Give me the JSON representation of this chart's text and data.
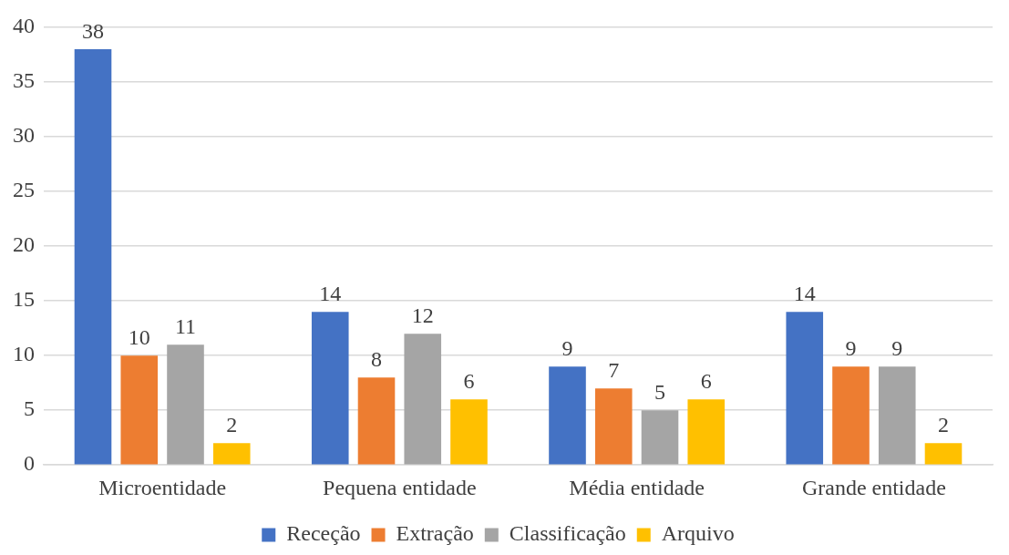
{
  "chart_data": {
    "type": "bar",
    "categories": [
      "Microentidade",
      "Pequena entidade",
      "Média entidade",
      "Grande entidade"
    ],
    "series": [
      {
        "name": "Receção",
        "color": "#4472c4",
        "values": [
          38,
          14,
          9,
          14
        ]
      },
      {
        "name": "Extração",
        "color": "#ed7d31",
        "values": [
          10,
          8,
          7,
          9
        ]
      },
      {
        "name": "Classificação",
        "color": "#a5a5a5",
        "values": [
          11,
          12,
          5,
          9
        ]
      },
      {
        "name": "Arquivo",
        "color": "#ffc000",
        "values": [
          2,
          6,
          6,
          2
        ]
      }
    ],
    "ylim": [
      0,
      40
    ],
    "yticks": [
      0,
      5,
      10,
      15,
      20,
      25,
      30,
      35,
      40
    ],
    "grid": "y",
    "legend": "bottom",
    "data_labels": true
  }
}
